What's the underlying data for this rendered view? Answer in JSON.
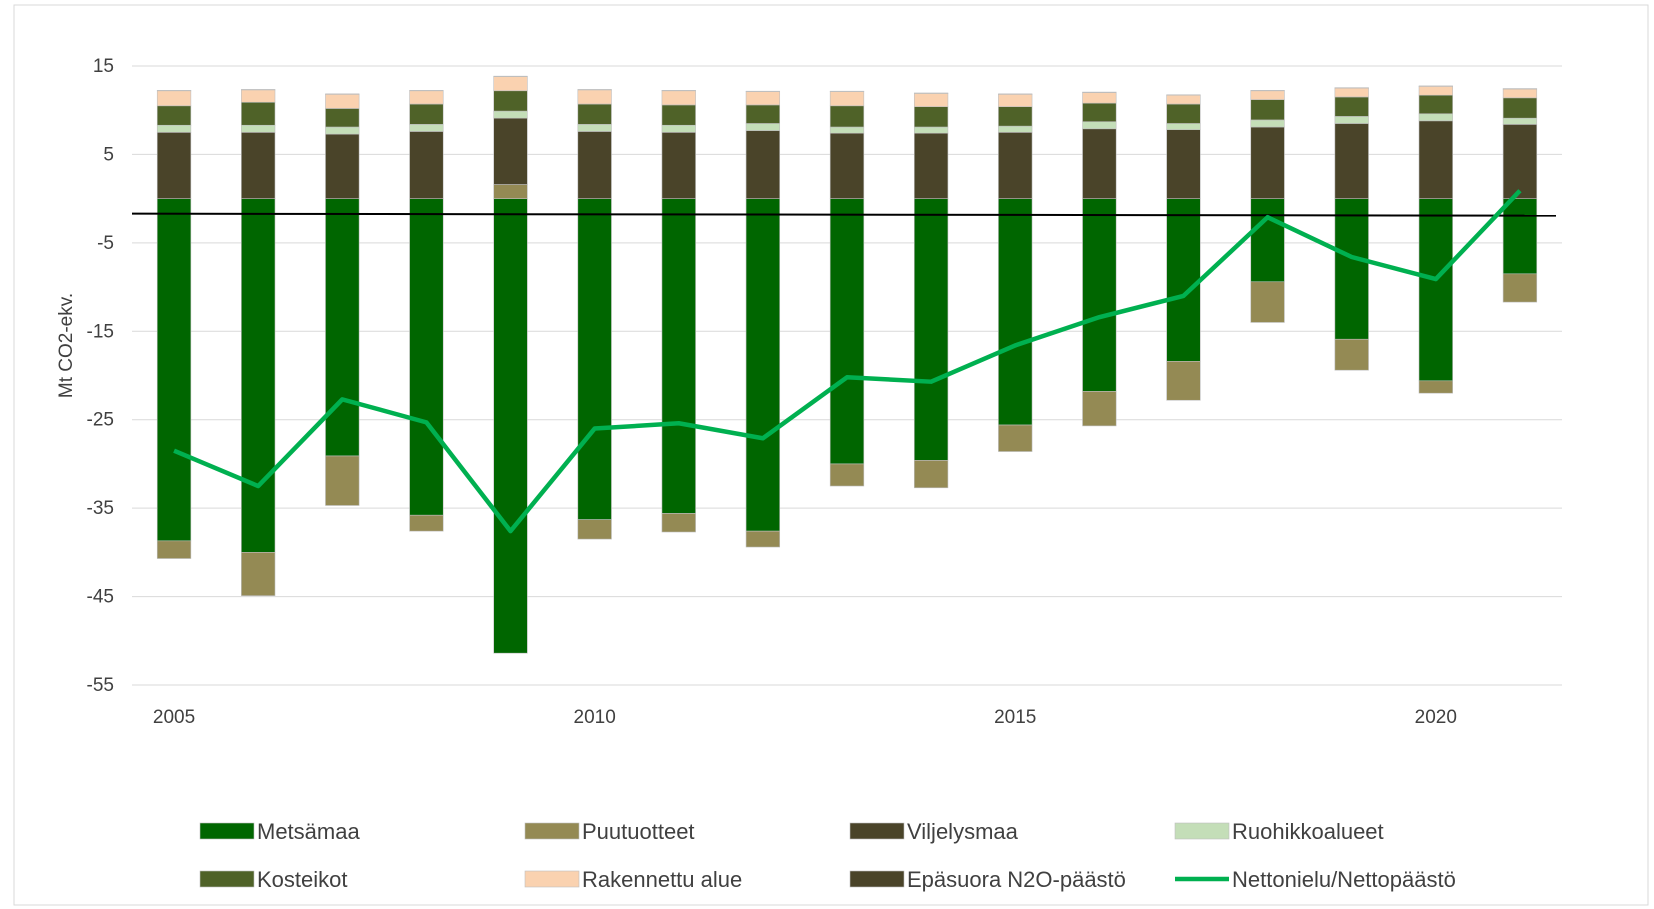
{
  "chart_data": {
    "type": "bar",
    "stacked": true,
    "ylabel": "Mt CO2-ekv.",
    "ylim": [
      -55,
      15
    ],
    "yticks": [
      15,
      5,
      -5,
      -15,
      -25,
      -35,
      -45,
      -55
    ],
    "ytick_labels": [
      "15",
      "5",
      "-5",
      "-15",
      "-25",
      "-35",
      "-45",
      "-55"
    ],
    "x": [
      2005,
      2006,
      2007,
      2008,
      2009,
      2010,
      2011,
      2012,
      2013,
      2014,
      2015,
      2016,
      2017,
      2018,
      2019,
      2020,
      2021
    ],
    "xtick_values": [
      2005,
      2010,
      2015,
      2020
    ],
    "xtick_labels": [
      "2005",
      "2010",
      "2015",
      "2020"
    ],
    "grid": true,
    "legend_position": "bottom",
    "reference_line": -1.7,
    "series": [
      {
        "name": "Metsämaa",
        "color": "#006600",
        "kind": "bar",
        "values": [
          -38.7,
          -40.0,
          -29.1,
          -35.8,
          -51.4,
          -36.3,
          -35.6,
          -37.6,
          -30.0,
          -29.6,
          -25.6,
          -21.8,
          -18.4,
          -9.4,
          -15.9,
          -20.6,
          -8.5
        ]
      },
      {
        "name": "Puutuotteet",
        "color": "#948A54",
        "kind": "bar",
        "values": [
          -2.0,
          -4.9,
          -5.6,
          -1.8,
          1.6,
          -2.2,
          -2.1,
          -1.8,
          -2.5,
          -3.1,
          -3.0,
          -3.9,
          -4.4,
          -4.6,
          -3.5,
          -1.4,
          -3.2
        ]
      },
      {
        "name": "Viljelysmaa",
        "color": "#4A4429",
        "kind": "bar",
        "values": [
          7.5,
          7.5,
          7.3,
          7.6,
          7.5,
          7.6,
          7.5,
          7.7,
          7.4,
          7.4,
          7.5,
          7.9,
          7.8,
          8.1,
          8.5,
          8.8,
          8.4
        ]
      },
      {
        "name": "Ruohikkoalueet",
        "color": "#C4DEB8",
        "kind": "bar",
        "values": [
          0.8,
          0.8,
          0.8,
          0.8,
          0.8,
          0.8,
          0.8,
          0.8,
          0.7,
          0.7,
          0.7,
          0.8,
          0.7,
          0.8,
          0.8,
          0.8,
          0.7
        ]
      },
      {
        "name": "Kosteikot",
        "color": "#4F6228",
        "kind": "bar",
        "values": [
          2.2,
          2.6,
          2.1,
          2.3,
          2.3,
          2.3,
          2.3,
          2.1,
          2.4,
          2.3,
          2.2,
          2.1,
          2.2,
          2.3,
          2.2,
          2.1,
          2.3
        ]
      },
      {
        "name": "Rakennettu alue",
        "color": "#FAD2B0",
        "kind": "bar",
        "values": [
          1.7,
          1.4,
          1.6,
          1.5,
          1.6,
          1.6,
          1.6,
          1.5,
          1.6,
          1.5,
          1.4,
          1.2,
          1.0,
          1.0,
          1.0,
          1.0,
          1.0
        ]
      },
      {
        "name": "Epäsuora N2O-päästö",
        "color": "#4A4429",
        "kind": "bar",
        "values": [
          0.05,
          0.05,
          0.05,
          0.05,
          0.05,
          0.05,
          0.05,
          0.05,
          0.05,
          0.05,
          0.05,
          0.05,
          0.05,
          0.05,
          0.05,
          0.05,
          0.05
        ]
      },
      {
        "name": "Nettonielu/Nettopäästö",
        "color": "#00B050",
        "kind": "line",
        "values": [
          -28.5,
          -32.5,
          -22.7,
          -25.3,
          -37.6,
          -26.0,
          -25.4,
          -27.1,
          -20.2,
          -20.7,
          -16.6,
          -13.4,
          -11.0,
          -2.1,
          -6.6,
          -9.1,
          0.9
        ]
      }
    ]
  }
}
